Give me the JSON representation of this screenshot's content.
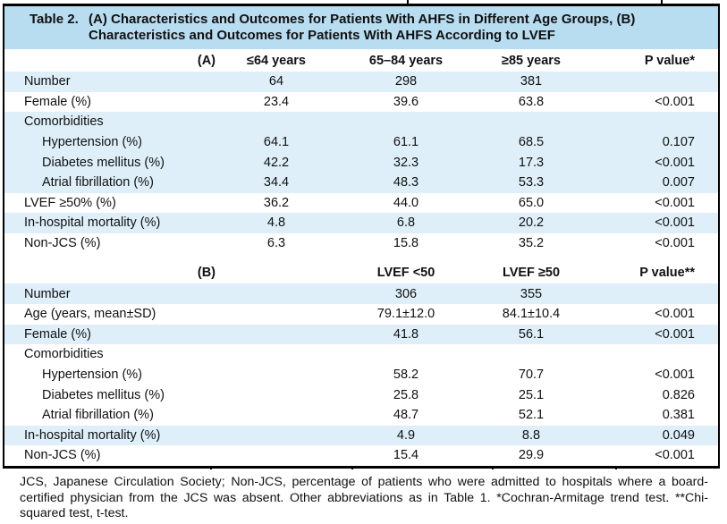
{
  "colors": {
    "title_bar": "#b8dcf0",
    "stripe": "#deeff9"
  },
  "title": {
    "label": "Table 2.",
    "line1": "(A) Characteristics and Outcomes for Patients With AHFS in Different Age Groups, (B)",
    "line2": "Characteristics and Outcomes for Patients With AHFS According to LVEF"
  },
  "section_a": {
    "label": "(A)",
    "columns": [
      "≤64 years",
      "65–84 years",
      "≥85 years",
      "P value*"
    ],
    "rows": [
      {
        "label": "Number",
        "indent": false,
        "values": [
          "64",
          "298",
          "381"
        ],
        "p": "",
        "shaded": true
      },
      {
        "label": "Female (%)",
        "indent": false,
        "values": [
          "23.4",
          "39.6",
          "63.8"
        ],
        "p": "<0.001",
        "shaded": false
      },
      {
        "label": "Comorbidities",
        "indent": false,
        "values": [
          "",
          "",
          ""
        ],
        "p": "",
        "shaded": true
      },
      {
        "label": "Hypertension (%)",
        "indent": true,
        "values": [
          "64.1",
          "61.1",
          "68.5"
        ],
        "p": "0.107",
        "shaded": true
      },
      {
        "label": "Diabetes mellitus (%)",
        "indent": true,
        "values": [
          "42.2",
          "32.3",
          "17.3"
        ],
        "p": "<0.001",
        "shaded": true
      },
      {
        "label": "Atrial fibrillation (%)",
        "indent": true,
        "values": [
          "34.4",
          "48.3",
          "53.3"
        ],
        "p": "0.007",
        "shaded": true
      },
      {
        "label": "LVEF ≥50% (%)",
        "indent": false,
        "values": [
          "36.2",
          "44.0",
          "65.0"
        ],
        "p": "<0.001",
        "shaded": false
      },
      {
        "label": "In-hospital mortality (%)",
        "indent": false,
        "values": [
          "4.8",
          "6.8",
          "20.2"
        ],
        "p": "<0.001",
        "shaded": true
      },
      {
        "label": "Non-JCS (%)",
        "indent": false,
        "values": [
          "6.3",
          "15.8",
          "35.2"
        ],
        "p": "<0.001",
        "shaded": false
      }
    ]
  },
  "section_b": {
    "label": "(B)",
    "columns": [
      "LVEF <50",
      "LVEF ≥50",
      "P value**"
    ],
    "rows": [
      {
        "label": "Number",
        "indent": false,
        "values": [
          "306",
          "355"
        ],
        "p": "",
        "shaded": true
      },
      {
        "label": "Age (years, mean±SD)",
        "indent": false,
        "values": [
          "79.1±12.0",
          "84.1±10.4"
        ],
        "p": "<0.001",
        "shaded": false
      },
      {
        "label": "Female (%)",
        "indent": false,
        "values": [
          "41.8",
          "56.1"
        ],
        "p": "<0.001",
        "shaded": true
      },
      {
        "label": "Comorbidities",
        "indent": false,
        "values": [
          "",
          ""
        ],
        "p": "",
        "shaded": false
      },
      {
        "label": "Hypertension (%)",
        "indent": true,
        "values": [
          "58.2",
          "70.7"
        ],
        "p": "<0.001",
        "shaded": false
      },
      {
        "label": "Diabetes mellitus (%)",
        "indent": true,
        "values": [
          "25.8",
          "25.1"
        ],
        "p": "0.826",
        "shaded": false
      },
      {
        "label": "Atrial fibrillation (%)",
        "indent": true,
        "values": [
          "48.7",
          "52.1"
        ],
        "p": "0.381",
        "shaded": false
      },
      {
        "label": "In-hospital mortality (%)",
        "indent": false,
        "values": [
          "4.9",
          "8.8"
        ],
        "p": "0.049",
        "shaded": true
      },
      {
        "label": "Non-JCS (%)",
        "indent": false,
        "values": [
          "15.4",
          "29.9"
        ],
        "p": "<0.001",
        "shaded": false
      }
    ]
  },
  "footnote": "JCS, Japanese Circulation Society; Non-JCS, percentage of patients who were admitted to hospitals where a board-certified physician from the JCS was absent. Other abbreviations as in Table 1. *Cochran-Armitage trend test. **Chi-squared test, t-test."
}
